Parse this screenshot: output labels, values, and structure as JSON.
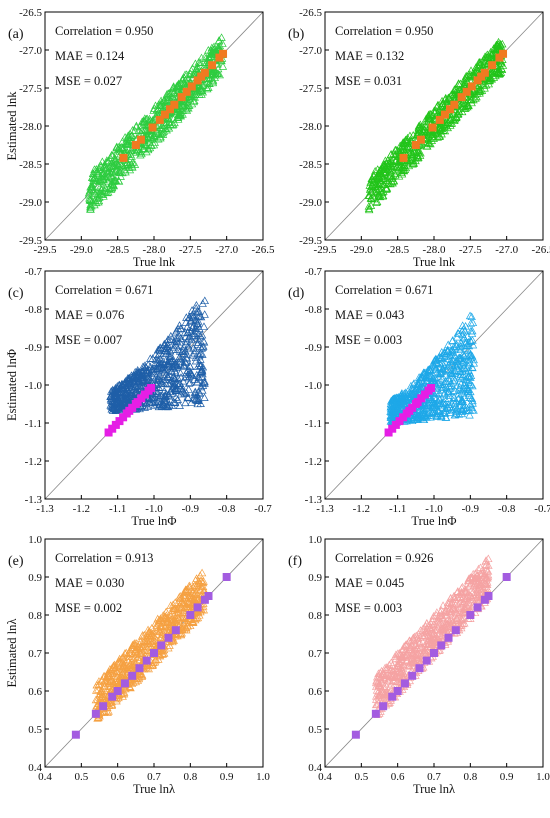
{
  "chart_data": [
    {
      "type": "scatter",
      "panel": "(a)",
      "stats": {
        "correlation": "Correlation = 0.950",
        "mae": "MAE = 0.124",
        "mse": "MSE = 0.027"
      },
      "xlabel": "True lnk",
      "ylabel": "Estimated lnk",
      "xlim": [
        -29.5,
        -26.5
      ],
      "ylim": [
        -29.5,
        -26.5
      ],
      "xticks": [
        "-29.5",
        "-29.0",
        "-28.5",
        "-28.0",
        "-27.5",
        "-27.0",
        "-26.5"
      ],
      "yticks": [
        "-29.5",
        "-29.0",
        "-28.5",
        "-28.0",
        "-27.5",
        "-27.0",
        "-26.5"
      ],
      "grid": false,
      "reference_line": "y = x",
      "cloud": {
        "marker": "open-triangle",
        "color": "#2ecc40",
        "x_range": [
          -28.9,
          -27.05
        ],
        "y_band": [
          -0.25,
          0.25
        ]
      },
      "truth_points": {
        "marker": "square",
        "color": "#f07a21",
        "x": [
          -28.42,
          -28.25,
          -28.18,
          -28.02,
          -27.92,
          -27.85,
          -27.78,
          -27.72,
          -27.62,
          -27.55,
          -27.48,
          -27.4,
          -27.35,
          -27.3,
          -27.2,
          -27.1,
          -27.05
        ],
        "y": [
          -28.42,
          -28.25,
          -28.18,
          -28.02,
          -27.92,
          -27.85,
          -27.78,
          -27.72,
          -27.62,
          -27.55,
          -27.48,
          -27.4,
          -27.35,
          -27.3,
          -27.2,
          -27.1,
          -27.05
        ]
      }
    },
    {
      "type": "scatter",
      "panel": "(b)",
      "stats": {
        "correlation": "Correlation = 0.950",
        "mae": "MAE = 0.132",
        "mse": "MSE = 0.031"
      },
      "xlabel": "True lnk",
      "ylabel": "",
      "xlim": [
        -29.5,
        -26.5
      ],
      "ylim": [
        -29.5,
        -26.5
      ],
      "xticks": [
        "-29.5",
        "-29.0",
        "-28.5",
        "-28.0",
        "-27.5",
        "-27.0",
        "-26.5"
      ],
      "yticks": [
        "-29.5",
        "-29.0",
        "-28.5",
        "-28.0",
        "-27.5",
        "-27.0",
        "-26.5"
      ],
      "grid": false,
      "reference_line": "y = x",
      "cloud": {
        "marker": "open-triangle",
        "color": "#22c41a",
        "x_range": [
          -28.9,
          -27.05
        ],
        "y_band": [
          -0.22,
          0.22
        ]
      },
      "truth_points": {
        "marker": "square",
        "color": "#f07a21",
        "x": [
          -28.42,
          -28.25,
          -28.18,
          -28.02,
          -27.92,
          -27.85,
          -27.78,
          -27.72,
          -27.62,
          -27.55,
          -27.48,
          -27.4,
          -27.35,
          -27.3,
          -27.2,
          -27.1,
          -27.05
        ],
        "y": [
          -28.42,
          -28.25,
          -28.18,
          -28.02,
          -27.92,
          -27.85,
          -27.78,
          -27.72,
          -27.62,
          -27.55,
          -27.48,
          -27.4,
          -27.35,
          -27.3,
          -27.2,
          -27.1,
          -27.05
        ]
      }
    },
    {
      "type": "scatter",
      "panel": "(c)",
      "stats": {
        "correlation": "Correlation = 0.671",
        "mae": "MAE = 0.076",
        "mse": "MSE = 0.007"
      },
      "xlabel": "True lnΦ",
      "ylabel": "Estimated lnΦ",
      "xlim": [
        -1.3,
        -0.7
      ],
      "ylim": [
        -1.3,
        -0.7
      ],
      "xticks": [
        "-1.3",
        "-1.2",
        "-1.1",
        "-1.0",
        "-0.9",
        "-0.8",
        "-0.7"
      ],
      "yticks": [
        "-1.3",
        "-1.2",
        "-1.1",
        "-1.0",
        "-0.9",
        "-0.8",
        "-0.7"
      ],
      "grid": false,
      "reference_line": "y = x",
      "cloud": {
        "marker": "open-triangle",
        "color": "#1f5fa8",
        "x_range": [
          -1.12,
          -0.86
        ],
        "y_range": [
          -1.07,
          -0.76
        ]
      },
      "truth_points": {
        "marker": "square",
        "color": "#e51ee5",
        "x": [
          -1.125,
          -1.115,
          -1.105,
          -1.095,
          -1.085,
          -1.075,
          -1.068,
          -1.06,
          -1.05,
          -1.045,
          -1.035,
          -1.025,
          -1.015,
          -1.008
        ],
        "y": [
          -1.125,
          -1.115,
          -1.105,
          -1.095,
          -1.085,
          -1.075,
          -1.068,
          -1.06,
          -1.05,
          -1.045,
          -1.035,
          -1.025,
          -1.015,
          -1.008
        ]
      }
    },
    {
      "type": "scatter",
      "panel": "(d)",
      "stats": {
        "correlation": "Correlation = 0.671",
        "mae": "MAE = 0.043",
        "mse": "MSE = 0.003"
      },
      "xlabel": "True lnΦ",
      "ylabel": "",
      "xlim": [
        -1.3,
        -0.7
      ],
      "ylim": [
        -1.3,
        -0.7
      ],
      "xticks": [
        "-1.3",
        "-1.2",
        "-1.1",
        "-1.0",
        "-0.9",
        "-0.8",
        "-0.7"
      ],
      "yticks": [
        "-1.3",
        "-1.2",
        "-1.1",
        "-1.0",
        "-0.9",
        "-0.8",
        "-0.7"
      ],
      "grid": false,
      "reference_line": "y = x",
      "cloud": {
        "marker": "open-triangle",
        "color": "#1ea8e8",
        "x_range": [
          -1.12,
          -0.89
        ],
        "y_range": [
          -1.1,
          -0.8
        ]
      },
      "truth_points": {
        "marker": "square",
        "color": "#e51ee5",
        "x": [
          -1.125,
          -1.115,
          -1.105,
          -1.095,
          -1.085,
          -1.075,
          -1.068,
          -1.06,
          -1.05,
          -1.045,
          -1.035,
          -1.025,
          -1.015,
          -1.008
        ],
        "y": [
          -1.125,
          -1.115,
          -1.105,
          -1.095,
          -1.085,
          -1.075,
          -1.068,
          -1.06,
          -1.05,
          -1.045,
          -1.035,
          -1.025,
          -1.015,
          -1.008
        ]
      }
    },
    {
      "type": "scatter",
      "panel": "(e)",
      "stats": {
        "correlation": "Correlation = 0.913",
        "mae": "MAE = 0.030",
        "mse": "MSE = 0.002"
      },
      "xlabel": "True lnλ",
      "ylabel": "Estimated lnλ",
      "xlim": [
        0.4,
        1.0
      ],
      "ylim": [
        0.4,
        1.0
      ],
      "xticks": [
        "0.4",
        "0.5",
        "0.6",
        "0.7",
        "0.8",
        "0.9",
        "1.0"
      ],
      "yticks": [
        "0.4",
        "0.5",
        "0.6",
        "0.7",
        "0.8",
        "0.9",
        "1.0"
      ],
      "grid": false,
      "reference_line": "y = x",
      "cloud": {
        "marker": "open-triangle",
        "color": "#f5a142",
        "x_range": [
          0.54,
          0.84
        ],
        "y_band": [
          -0.03,
          0.08
        ]
      },
      "truth_points": {
        "marker": "square",
        "color": "#a35ce0",
        "x": [
          0.485,
          0.54,
          0.56,
          0.585,
          0.6,
          0.62,
          0.64,
          0.66,
          0.68,
          0.7,
          0.72,
          0.74,
          0.76,
          0.8,
          0.82,
          0.84,
          0.85,
          0.9
        ],
        "y": [
          0.485,
          0.54,
          0.56,
          0.585,
          0.6,
          0.62,
          0.64,
          0.66,
          0.68,
          0.7,
          0.72,
          0.74,
          0.76,
          0.8,
          0.82,
          0.84,
          0.85,
          0.9
        ]
      }
    },
    {
      "type": "scatter",
      "panel": "(f)",
      "stats": {
        "correlation": "Correlation = 0.926",
        "mae": "MAE = 0.045",
        "mse": "MSE = 0.003"
      },
      "xlabel": "True lnλ",
      "ylabel": "",
      "xlim": [
        0.4,
        1.0
      ],
      "ylim": [
        0.4,
        1.0
      ],
      "xticks": [
        "0.4",
        "0.5",
        "0.6",
        "0.7",
        "0.8",
        "0.9",
        "1.0"
      ],
      "yticks": [
        "0.4",
        "0.5",
        "0.6",
        "0.7",
        "0.8",
        "0.9",
        "1.0"
      ],
      "grid": false,
      "reference_line": "y = x",
      "cloud": {
        "marker": "open-triangle",
        "color": "#f5a3a3",
        "x_range": [
          0.54,
          0.85
        ],
        "y_band": [
          -0.01,
          0.1
        ]
      },
      "truth_points": {
        "marker": "square",
        "color": "#a35ce0",
        "x": [
          0.485,
          0.54,
          0.56,
          0.585,
          0.6,
          0.62,
          0.64,
          0.66,
          0.68,
          0.7,
          0.72,
          0.74,
          0.76,
          0.8,
          0.82,
          0.84,
          0.85,
          0.9
        ],
        "y": [
          0.485,
          0.54,
          0.56,
          0.585,
          0.6,
          0.62,
          0.64,
          0.66,
          0.68,
          0.7,
          0.72,
          0.74,
          0.76,
          0.8,
          0.82,
          0.84,
          0.85,
          0.9
        ]
      }
    }
  ]
}
